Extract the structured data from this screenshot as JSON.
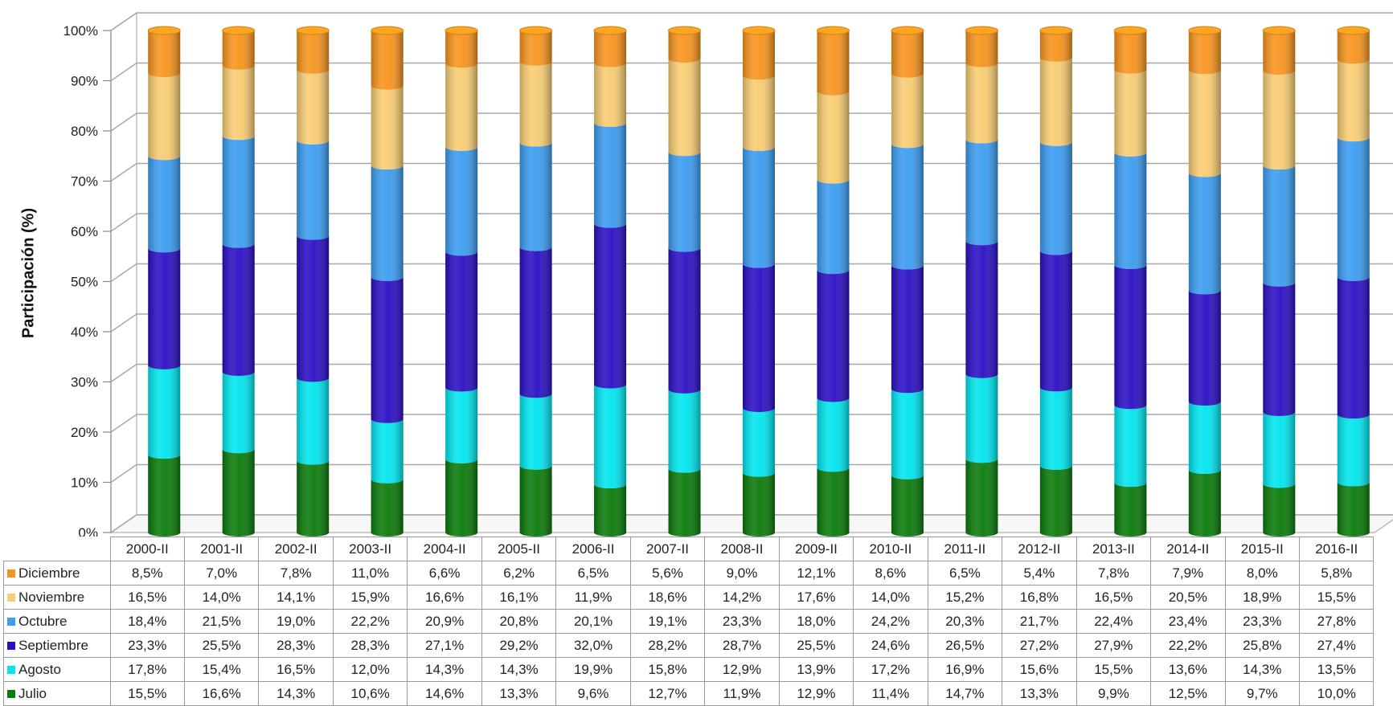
{
  "chart_data": {
    "type": "bar",
    "stacked": true,
    "percent_stacked": true,
    "style": "3d-cylinder",
    "title": "",
    "xlabel": "",
    "ylabel": "Participación (%)",
    "ylim": [
      0,
      100
    ],
    "yticks": [
      "0%",
      "10%",
      "20%",
      "30%",
      "40%",
      "50%",
      "60%",
      "70%",
      "80%",
      "90%",
      "100%"
    ],
    "grid": true,
    "legend": "data-table-bottom",
    "categories": [
      "2000-II",
      "2001-II",
      "2002-II",
      "2003-II",
      "2004-II",
      "2005-II",
      "2006-II",
      "2007-II",
      "2008-II",
      "2009-II",
      "2010-II",
      "2011-II",
      "2012-II",
      "2013-II",
      "2014-II",
      "2015-II",
      "2016-II"
    ],
    "series": [
      {
        "name": "Julio",
        "color": "#0a7a0a",
        "values": [
          "15,5%",
          "16,6%",
          "14,3%",
          "10,6%",
          "14,6%",
          "13,3%",
          "9,6%",
          "12,7%",
          "11,9%",
          "12,9%",
          "11,4%",
          "14,7%",
          "13,3%",
          "9,9%",
          "12,5%",
          "9,7%",
          "10,0%"
        ]
      },
      {
        "name": "Agosto",
        "color": "#00e5ee",
        "values": [
          "17,8%",
          "15,4%",
          "16,5%",
          "12,0%",
          "14,3%",
          "14,3%",
          "19,9%",
          "15,8%",
          "12,9%",
          "13,9%",
          "17,2%",
          "16,9%",
          "15,6%",
          "15,5%",
          "13,6%",
          "14,3%",
          "13,5%"
        ]
      },
      {
        "name": "Septiembre",
        "color": "#2a0fc4",
        "values": [
          "23,3%",
          "25,5%",
          "28,3%",
          "28,3%",
          "27,1%",
          "29,2%",
          "32,0%",
          "28,2%",
          "28,7%",
          "25,5%",
          "24,6%",
          "26,5%",
          "27,2%",
          "27,9%",
          "22,2%",
          "25,8%",
          "27,4%"
        ]
      },
      {
        "name": "Octubre",
        "color": "#3b9cf0",
        "values": [
          "18,4%",
          "21,5%",
          "19,0%",
          "22,2%",
          "20,9%",
          "20,8%",
          "20,1%",
          "19,1%",
          "23,3%",
          "18,0%",
          "24,2%",
          "20,3%",
          "21,7%",
          "22,4%",
          "23,4%",
          "23,3%",
          "27,8%"
        ]
      },
      {
        "name": "Noviembre",
        "color": "#f8cc72",
        "values": [
          "16,5%",
          "14,0%",
          "14,1%",
          "15,9%",
          "16,6%",
          "16,1%",
          "11,9%",
          "18,6%",
          "14,2%",
          "17,6%",
          "14,0%",
          "15,2%",
          "16,8%",
          "16,5%",
          "20,5%",
          "18,9%",
          "15,5%"
        ]
      },
      {
        "name": "Diciembre",
        "color": "#f7941d",
        "values": [
          "8,5%",
          "7,0%",
          "7,8%",
          "11,0%",
          "6,6%",
          "6,2%",
          "6,5%",
          "5,6%",
          "9,0%",
          "12,1%",
          "8,6%",
          "6,5%",
          "5,4%",
          "7,8%",
          "7,9%",
          "8,0%",
          "5,8%"
        ]
      }
    ],
    "table_row_order": [
      "Diciembre",
      "Noviembre",
      "Octubre",
      "Septiembre",
      "Agosto",
      "Julio"
    ]
  }
}
